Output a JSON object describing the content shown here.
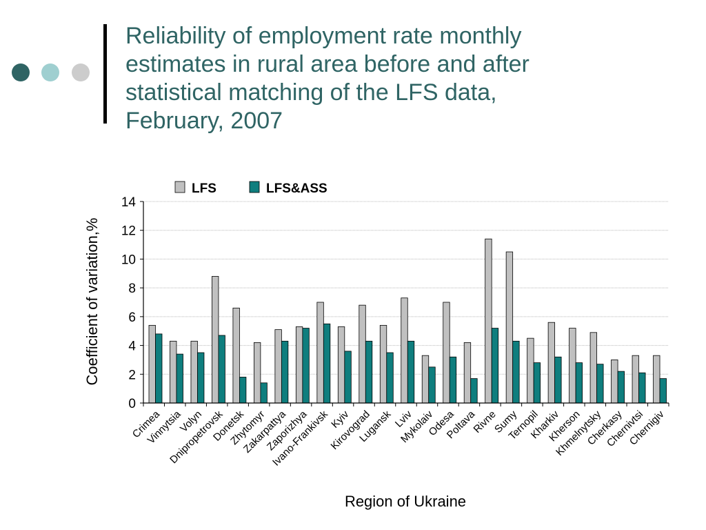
{
  "slide": {
    "title_lines": [
      "Reliability of employment rate monthly",
      "estimates in rural area before and after",
      "statistical matching of the LFS data,",
      "February, 2007"
    ],
    "dot_colors": [
      "#2f6464",
      "#9fcfd0",
      "#cccccc"
    ]
  },
  "chart_data": {
    "type": "bar",
    "xlabel": "Region of Ukraine",
    "ylabel": "Coefficient of variation,%",
    "ylim": [
      0,
      14
    ],
    "yticks": [
      0,
      2,
      4,
      6,
      8,
      10,
      12,
      14
    ],
    "grid": true,
    "legend_position": "top",
    "categories": [
      "Crimea",
      "Vinnytsia",
      "Volyn",
      "Dnipropetrovsk",
      "Donetsk",
      "Zhytomyr",
      "Zakarpattya",
      "Zaporizhya",
      "Ivano-Frankivsk",
      "Kyiv",
      "Kirovograd",
      "Lugansk",
      "Lviv",
      "Mykolaiv",
      "Odesa",
      "Poltava",
      "Rivne",
      "Sumy",
      "Ternopil",
      "Kharkiv",
      "Kherson",
      "Khmelnytsky",
      "Cherkasy",
      "Chernivtsi",
      "Chernigiv"
    ],
    "series": [
      {
        "name": "LFS",
        "color": "#c0c0c0",
        "values": [
          5.4,
          4.3,
          4.3,
          8.8,
          6.6,
          4.2,
          5.1,
          5.3,
          7.0,
          5.3,
          6.8,
          5.4,
          7.3,
          3.3,
          7.0,
          4.2,
          11.4,
          10.5,
          4.5,
          5.6,
          5.2,
          4.9,
          3.0,
          3.3,
          3.3
        ]
      },
      {
        "name": "LFS&ASS",
        "color": "#0f7e7e",
        "values": [
          4.8,
          3.4,
          3.5,
          4.7,
          1.8,
          1.4,
          4.3,
          5.2,
          5.5,
          3.6,
          4.3,
          3.5,
          4.3,
          2.5,
          3.2,
          1.7,
          5.2,
          4.3,
          2.8,
          3.2,
          2.8,
          2.7,
          2.2,
          2.1,
          1.7
        ]
      }
    ]
  }
}
